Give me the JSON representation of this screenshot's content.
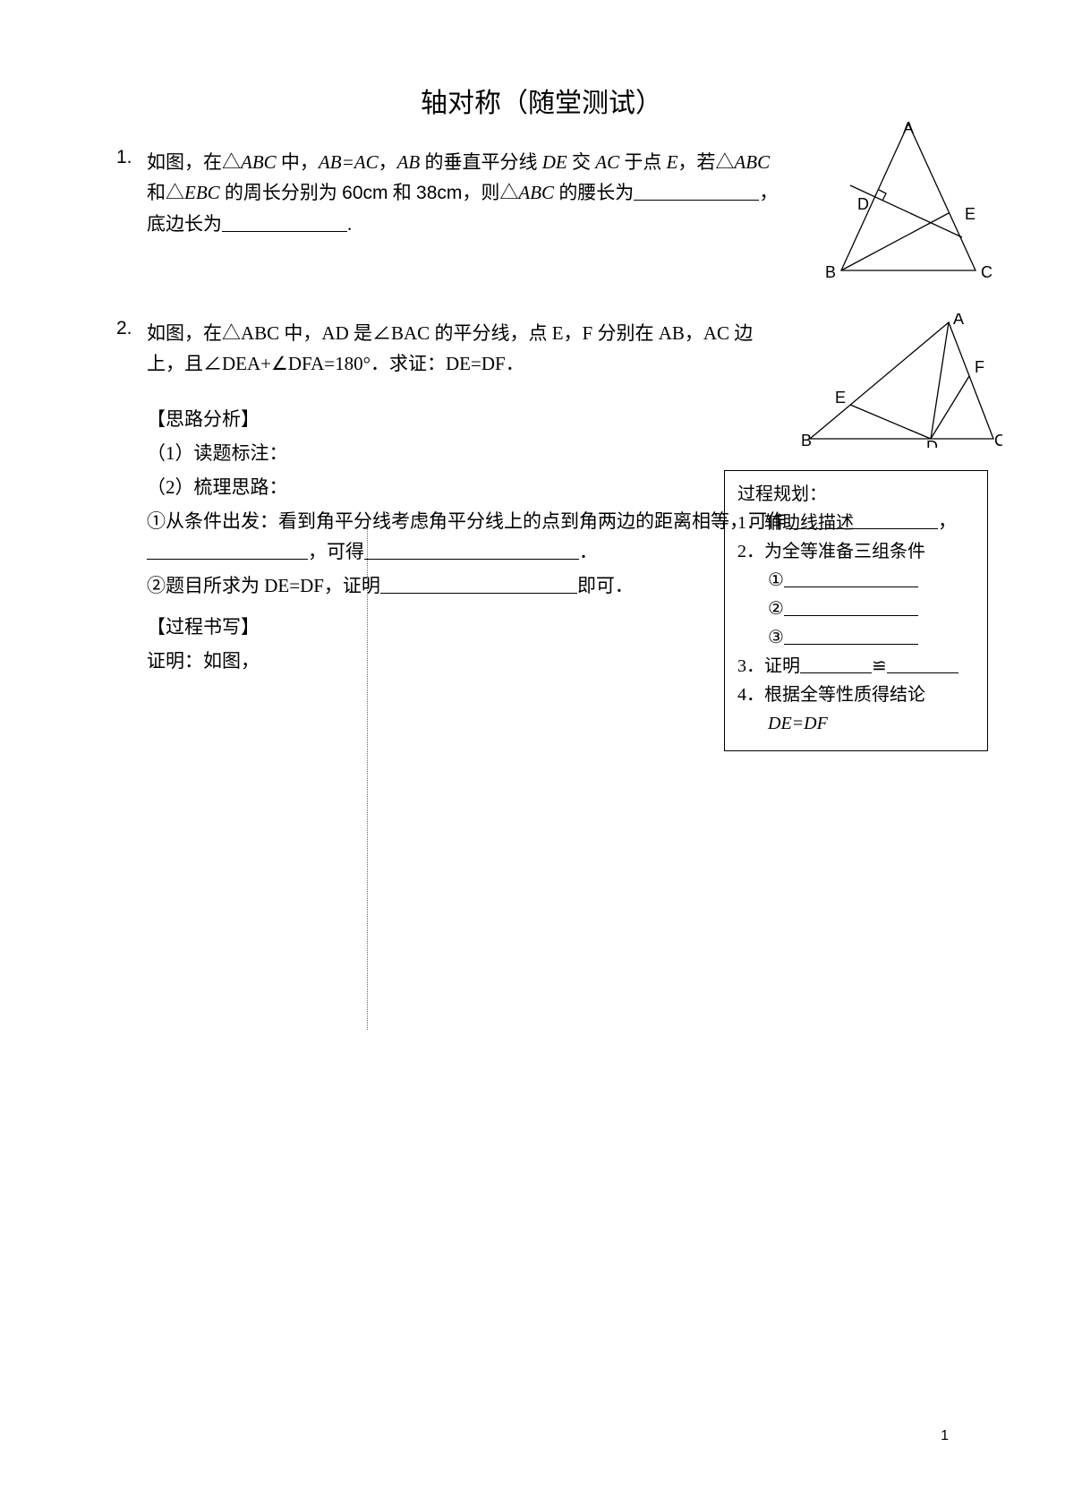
{
  "title": "轴对称（随堂测试）",
  "q1": {
    "num": "1.",
    "text_a": "如图，在△",
    "abc": "ABC",
    "text_b": " 中，",
    "ab_eq_ac": "AB=AC",
    "text_c": "，",
    "ab": "AB",
    "text_d": " 的垂直平分线 ",
    "de": "DE",
    "text_e": " 交 ",
    "ac": "AC",
    "text_f": " 于点 ",
    "pe": "E",
    "text_g": "，若△",
    "text_h": " 和△",
    "ebc": "EBC",
    "text_i": " 的周长分别为 ",
    "v60": "60cm",
    "text_j": " 和 ",
    "v38": "38cm",
    "text_k": "，则△",
    "text_l": " 的腰长为",
    "text_m": "，底边长为",
    "period": "."
  },
  "q2": {
    "num": "2.",
    "line1_a": "如图，在△ABC 中，AD 是∠BAC 的平分线，点 E，F 分别在 AB，AC 边上，且∠DEA+∠DFA=180°．求证：DE=DF．",
    "heading1": "【思路分析】",
    "step1": "（1）读题标注：",
    "step2": "（2）梳理思路：",
    "line_a": "①从条件出发：看到角平分线考虑角平分线上的点到角两边的距离相等，可作",
    "line_a_mid": "，",
    "line_a_end": "，可得",
    "line_a_period": "．",
    "line_b": "②题目所求为 DE=DF，证明",
    "line_b_end": "即可．",
    "heading2": "【过程书写】",
    "proof": "证明：如图，"
  },
  "plan": {
    "title": "过程规划：",
    "l1": "1．辅助线描述",
    "l2": "2．为全等准备三组条件",
    "c1": "①",
    "c2": "②",
    "c3": "③",
    "l3a": "3．证明",
    "cong": "≌",
    "l4": "4．根据全等性质得结论",
    "res": "DE=DF"
  },
  "fig1": {
    "labels": {
      "A": "A",
      "B": "B",
      "C": "C",
      "D": "D",
      "E": "E"
    },
    "stroke": "#000000",
    "stroke_width": 1.3
  },
  "fig2": {
    "labels": {
      "A": "A",
      "B": "B",
      "C": "C",
      "D": "D",
      "E": "E",
      "F": "F"
    },
    "stroke": "#000000",
    "stroke_width": 1.3
  },
  "styles": {
    "bg": "#ffffff",
    "text": "#000000",
    "title_fontsize": 30,
    "body_fontsize": 21,
    "planbox_fontsize": 20
  },
  "pagenum": "1",
  "blank_widths": {
    "q1_blank1": 140,
    "q1_blank2": 140,
    "q2_a1": 170,
    "q2_a2": 180,
    "q2_a3": 240,
    "q2_b1": 220,
    "pb_c": 150,
    "pb_3a": 80,
    "pb_3b": 80
  }
}
